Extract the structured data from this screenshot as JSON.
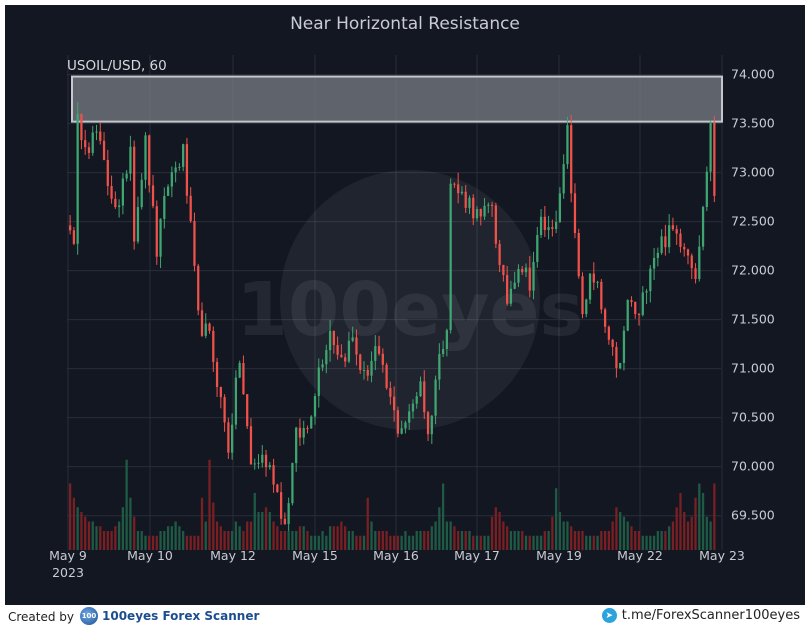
{
  "chart_data": {
    "type": "candlestick",
    "title": "Near Horizontal Resistance",
    "symbol_label": "USOIL/USD, 60",
    "x_tick_labels": [
      "May 9",
      "May 10",
      "May 12",
      "May 15",
      "May 16",
      "May 17",
      "May 19",
      "May 22",
      "May 23"
    ],
    "x_year_label": "2023",
    "y_tick_labels": [
      "74.000",
      "73.500",
      "73.000",
      "72.500",
      "72.000",
      "71.500",
      "71.000",
      "70.500",
      "70.000",
      "69.500"
    ],
    "y_ticks": [
      74.0,
      73.5,
      73.0,
      72.5,
      72.0,
      71.5,
      71.0,
      70.5,
      70.0,
      69.5
    ],
    "ylim": [
      69.15,
      74.2
    ],
    "resistance_zone": [
      73.52,
      73.98
    ],
    "grid": true,
    "close_path": [
      [
        0,
        72.5
      ],
      [
        1,
        72.2
      ],
      [
        2,
        73.5
      ],
      [
        5,
        73.3
      ],
      [
        7,
        73.4
      ],
      [
        10,
        72.9
      ],
      [
        13,
        72.6
      ],
      [
        16,
        73.3
      ],
      [
        17,
        72.4
      ],
      [
        20,
        73.3
      ],
      [
        23,
        72.2
      ],
      [
        26,
        72.9
      ],
      [
        30,
        73.2
      ],
      [
        32,
        72.4
      ],
      [
        34,
        71.5
      ],
      [
        37,
        71.3
      ],
      [
        39,
        70.9
      ],
      [
        42,
        70.2
      ],
      [
        45,
        71.1
      ],
      [
        48,
        70.0
      ],
      [
        51,
        70.1
      ],
      [
        54,
        69.9
      ],
      [
        57,
        69.4
      ],
      [
        60,
        70.3
      ],
      [
        63,
        70.4
      ],
      [
        66,
        71.0
      ],
      [
        69,
        71.4
      ],
      [
        72,
        71.1
      ],
      [
        75,
        71.3
      ],
      [
        78,
        70.9
      ],
      [
        81,
        71.2
      ],
      [
        84,
        70.8
      ],
      [
        87,
        70.4
      ],
      [
        90,
        70.5
      ],
      [
        93,
        70.9
      ],
      [
        95,
        70.3
      ],
      [
        97,
        70.9
      ],
      [
        100,
        71.5
      ],
      [
        101,
        72.9
      ],
      [
        103,
        72.8
      ],
      [
        106,
        72.7
      ],
      [
        109,
        72.5
      ],
      [
        112,
        72.7
      ],
      [
        114,
        72.0
      ],
      [
        116,
        71.7
      ],
      [
        119,
        72.1
      ],
      [
        122,
        71.9
      ],
      [
        125,
        72.5
      ],
      [
        127,
        72.4
      ],
      [
        130,
        72.7
      ],
      [
        132,
        73.4
      ],
      [
        134,
        72.3
      ],
      [
        136,
        71.6
      ],
      [
        138,
        71.9
      ],
      [
        140,
        71.8
      ],
      [
        143,
        71.2
      ],
      [
        146,
        71.0
      ],
      [
        148,
        71.7
      ],
      [
        151,
        71.5
      ],
      [
        154,
        72.1
      ],
      [
        157,
        72.3
      ],
      [
        160,
        72.4
      ],
      [
        163,
        72.3
      ],
      [
        166,
        72.0
      ],
      [
        168,
        72.6
      ],
      [
        170,
        73.5
      ],
      [
        171,
        72.8
      ]
    ],
    "volume_relative": [
      0.7,
      0.55,
      0.45,
      0.4,
      0.35,
      0.3,
      0.3,
      0.25,
      0.25,
      0.2,
      0.2,
      0.2,
      0.25,
      0.3,
      0.45,
      0.95,
      0.55,
      0.35,
      0.2,
      0.2,
      0.15,
      0.15,
      0.15,
      0.15,
      0.2,
      0.2,
      0.25,
      0.25,
      0.3,
      0.25,
      0.2,
      0.15,
      0.15,
      0.15,
      0.15,
      0.55,
      0.3,
      0.95,
      0.5,
      0.3,
      0.25,
      0.2,
      0.2,
      0.2,
      0.3,
      0.25,
      0.2,
      0.3,
      0.3,
      0.6,
      0.4,
      0.4,
      0.45,
      0.4,
      0.3,
      0.25,
      0.2,
      0.2,
      0.2,
      0.2,
      0.2,
      0.25,
      0.25,
      0.2,
      0.15,
      0.15,
      0.15,
      0.2,
      0.15,
      0.25,
      0.25,
      0.25,
      0.3,
      0.25,
      0.2,
      0.2,
      0.15,
      0.15,
      0.15,
      0.55,
      0.3,
      0.2,
      0.2,
      0.2,
      0.2,
      0.15,
      0.15,
      0.15,
      0.15,
      0.2,
      0.15,
      0.15,
      0.2,
      0.2,
      0.2,
      0.2,
      0.25,
      0.3,
      0.45,
      0.7,
      0.3,
      0.3,
      0.25,
      0.2,
      0.2,
      0.2,
      0.2,
      0.15,
      0.15,
      0.15,
      0.15,
      0.15,
      0.35,
      0.45,
      0.4,
      0.3,
      0.25,
      0.2,
      0.2,
      0.2,
      0.2,
      0.15,
      0.15,
      0.15,
      0.15,
      0.15,
      0.2,
      0.2,
      0.35,
      0.65,
      0.4,
      0.3,
      0.3,
      0.25,
      0.2,
      0.2,
      0.2,
      0.15,
      0.15,
      0.15,
      0.15,
      0.2,
      0.2,
      0.2,
      0.3,
      0.45,
      0.4,
      0.35,
      0.3,
      0.25,
      0.2,
      0.2,
      0.15,
      0.15,
      0.15,
      0.15,
      0.2,
      0.2,
      0.2,
      0.25,
      0.3,
      0.45,
      0.6,
      0.4,
      0.3,
      0.35,
      0.55,
      0.7,
      0.6,
      0.35,
      0.3
    ],
    "colors": {
      "background": "#131722",
      "up": "#3fa672",
      "down": "#f0524a",
      "volume_up": "#1f5a45",
      "volume_down": "#7a1f22",
      "zone_fill": "#7a7d86",
      "zone_stroke": "#c5c7cc"
    },
    "watermark": "100eyes"
  },
  "footer": {
    "created_by": "Created by",
    "brand_logo_text": "100",
    "brand_name": "100eyes  Forex  Scanner",
    "telegram_icon": "➤",
    "telegram_link": "t.me/ForexScanner100eyes"
  }
}
